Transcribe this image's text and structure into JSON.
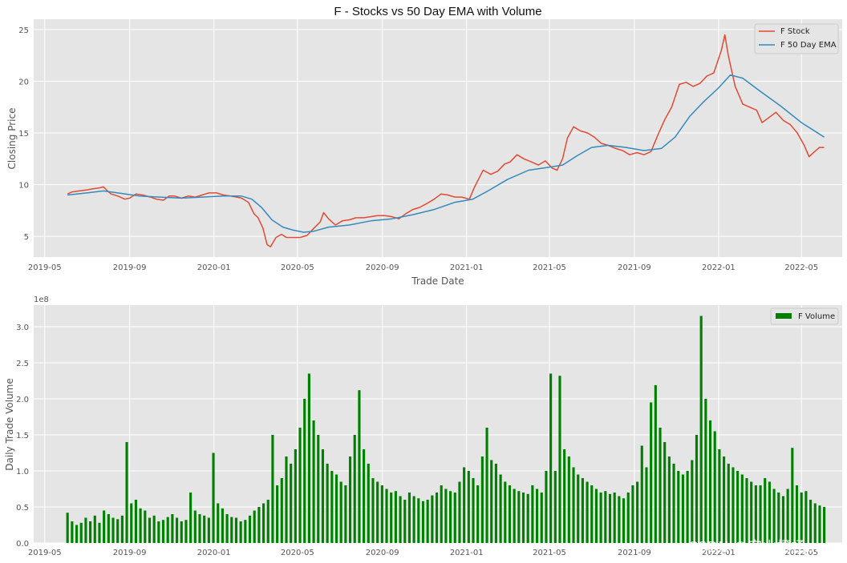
{
  "watermark": "CSDN @实山橙杨prss",
  "chart_data": [
    {
      "type": "line",
      "title": "F - Stocks vs 50 Day EMA with Volume",
      "xlabel": "Trade Date",
      "ylabel": "Closing Price",
      "x_ticks": [
        "2019-05",
        "2019-09",
        "2020-01",
        "2020-05",
        "2020-09",
        "2021-01",
        "2021-05",
        "2021-09",
        "2022-01",
        "2022-05"
      ],
      "y_ticks": [
        5,
        10,
        15,
        20,
        25
      ],
      "ylim": [
        3,
        26
      ],
      "grid": true,
      "legend": "top-right",
      "series": [
        {
          "name": "F Stock",
          "color": "#e24a33",
          "points": [
            [
              "2019-06-03",
              9.1
            ],
            [
              "2019-06-10",
              9.3
            ],
            [
              "2019-06-20",
              9.4
            ],
            [
              "2019-07-01",
              9.5
            ],
            [
              "2019-07-10",
              9.6
            ],
            [
              "2019-07-20",
              9.7
            ],
            [
              "2019-07-25",
              9.8
            ],
            [
              "2019-07-31",
              9.4
            ],
            [
              "2019-08-05",
              9.1
            ],
            [
              "2019-08-15",
              8.9
            ],
            [
              "2019-08-25",
              8.6
            ],
            [
              "2019-09-01",
              8.7
            ],
            [
              "2019-09-10",
              9.1
            ],
            [
              "2019-09-20",
              9.0
            ],
            [
              "2019-10-01",
              8.8
            ],
            [
              "2019-10-10",
              8.6
            ],
            [
              "2019-10-20",
              8.5
            ],
            [
              "2019-10-28",
              8.9
            ],
            [
              "2019-11-05",
              8.9
            ],
            [
              "2019-11-15",
              8.7
            ],
            [
              "2019-11-25",
              8.9
            ],
            [
              "2019-12-05",
              8.8
            ],
            [
              "2019-12-15",
              9.0
            ],
            [
              "2019-12-25",
              9.2
            ],
            [
              "2020-01-05",
              9.2
            ],
            [
              "2020-01-15",
              9.0
            ],
            [
              "2020-01-25",
              8.9
            ],
            [
              "2020-02-03",
              8.8
            ],
            [
              "2020-02-10",
              8.7
            ],
            [
              "2020-02-20",
              8.3
            ],
            [
              "2020-02-28",
              7.2
            ],
            [
              "2020-03-05",
              6.8
            ],
            [
              "2020-03-12",
              5.8
            ],
            [
              "2020-03-18",
              4.2
            ],
            [
              "2020-03-23",
              4.0
            ],
            [
              "2020-03-31",
              4.9
            ],
            [
              "2020-04-08",
              5.2
            ],
            [
              "2020-04-15",
              4.9
            ],
            [
              "2020-04-25",
              4.9
            ],
            [
              "2020-05-05",
              4.9
            ],
            [
              "2020-05-15",
              5.1
            ],
            [
              "2020-05-25",
              5.8
            ],
            [
              "2020-06-03",
              6.4
            ],
            [
              "2020-06-08",
              7.3
            ],
            [
              "2020-06-15",
              6.7
            ],
            [
              "2020-06-25",
              6.1
            ],
            [
              "2020-07-05",
              6.5
            ],
            [
              "2020-07-15",
              6.6
            ],
            [
              "2020-07-25",
              6.8
            ],
            [
              "2020-08-05",
              6.8
            ],
            [
              "2020-08-15",
              6.9
            ],
            [
              "2020-08-25",
              7.0
            ],
            [
              "2020-09-05",
              7.0
            ],
            [
              "2020-09-15",
              6.9
            ],
            [
              "2020-09-25",
              6.7
            ],
            [
              "2020-10-05",
              7.2
            ],
            [
              "2020-10-15",
              7.6
            ],
            [
              "2020-10-25",
              7.8
            ],
            [
              "2020-11-05",
              8.2
            ],
            [
              "2020-11-15",
              8.6
            ],
            [
              "2020-11-25",
              9.1
            ],
            [
              "2020-12-05",
              9.0
            ],
            [
              "2020-12-15",
              8.8
            ],
            [
              "2020-12-25",
              8.8
            ],
            [
              "2021-01-05",
              8.6
            ],
            [
              "2021-01-12",
              9.7
            ],
            [
              "2021-01-18",
              10.5
            ],
            [
              "2021-01-25",
              11.4
            ],
            [
              "2021-02-05",
              11.0
            ],
            [
              "2021-02-15",
              11.3
            ],
            [
              "2021-02-25",
              12.0
            ],
            [
              "2021-03-05",
              12.2
            ],
            [
              "2021-03-15",
              12.9
            ],
            [
              "2021-03-25",
              12.5
            ],
            [
              "2021-04-05",
              12.2
            ],
            [
              "2021-04-15",
              11.9
            ],
            [
              "2021-04-25",
              12.3
            ],
            [
              "2021-05-05",
              11.6
            ],
            [
              "2021-05-12",
              11.4
            ],
            [
              "2021-05-20",
              12.5
            ],
            [
              "2021-05-27",
              14.5
            ],
            [
              "2021-06-05",
              15.6
            ],
            [
              "2021-06-15",
              15.2
            ],
            [
              "2021-06-25",
              15.0
            ],
            [
              "2021-07-05",
              14.6
            ],
            [
              "2021-07-15",
              14.0
            ],
            [
              "2021-07-25",
              13.8
            ],
            [
              "2021-08-05",
              13.5
            ],
            [
              "2021-08-15",
              13.3
            ],
            [
              "2021-08-25",
              12.9
            ],
            [
              "2021-09-05",
              13.1
            ],
            [
              "2021-09-15",
              12.9
            ],
            [
              "2021-09-25",
              13.2
            ],
            [
              "2021-10-05",
              14.8
            ],
            [
              "2021-10-15",
              16.3
            ],
            [
              "2021-10-25",
              17.5
            ],
            [
              "2021-11-05",
              19.7
            ],
            [
              "2021-11-15",
              19.9
            ],
            [
              "2021-11-25",
              19.5
            ],
            [
              "2021-12-05",
              19.8
            ],
            [
              "2021-12-15",
              20.5
            ],
            [
              "2021-12-25",
              20.8
            ],
            [
              "2022-01-05",
              23.0
            ],
            [
              "2022-01-10",
              24.5
            ],
            [
              "2022-01-15",
              22.5
            ],
            [
              "2022-01-25",
              19.5
            ],
            [
              "2022-02-05",
              17.8
            ],
            [
              "2022-02-15",
              17.5
            ],
            [
              "2022-02-25",
              17.2
            ],
            [
              "2022-03-05",
              16.0
            ],
            [
              "2022-03-15",
              16.5
            ],
            [
              "2022-03-25",
              17.0
            ],
            [
              "2022-04-05",
              16.2
            ],
            [
              "2022-04-15",
              15.8
            ],
            [
              "2022-04-25",
              15.0
            ],
            [
              "2022-05-05",
              13.8
            ],
            [
              "2022-05-12",
              12.7
            ],
            [
              "2022-05-20",
              13.2
            ],
            [
              "2022-05-27",
              13.6
            ],
            [
              "2022-06-03",
              13.6
            ]
          ]
        },
        {
          "name": "F 50 Day EMA",
          "color": "#348abd",
          "points": [
            [
              "2019-06-03",
              9.0
            ],
            [
              "2019-07-01",
              9.2
            ],
            [
              "2019-07-25",
              9.4
            ],
            [
              "2019-08-15",
              9.2
            ],
            [
              "2019-09-15",
              8.9
            ],
            [
              "2019-10-15",
              8.8
            ],
            [
              "2019-11-15",
              8.7
            ],
            [
              "2019-12-15",
              8.8
            ],
            [
              "2020-01-15",
              8.9
            ],
            [
              "2020-02-10",
              8.9
            ],
            [
              "2020-02-25",
              8.6
            ],
            [
              "2020-03-10",
              7.8
            ],
            [
              "2020-03-25",
              6.6
            ],
            [
              "2020-04-10",
              5.9
            ],
            [
              "2020-04-25",
              5.6
            ],
            [
              "2020-05-10",
              5.4
            ],
            [
              "2020-05-25",
              5.5
            ],
            [
              "2020-06-15",
              5.9
            ],
            [
              "2020-07-15",
              6.1
            ],
            [
              "2020-08-15",
              6.5
            ],
            [
              "2020-09-15",
              6.7
            ],
            [
              "2020-10-15",
              7.1
            ],
            [
              "2020-11-15",
              7.6
            ],
            [
              "2020-12-15",
              8.3
            ],
            [
              "2021-01-10",
              8.6
            ],
            [
              "2021-02-01",
              9.4
            ],
            [
              "2021-03-01",
              10.5
            ],
            [
              "2021-04-01",
              11.4
            ],
            [
              "2021-05-01",
              11.7
            ],
            [
              "2021-05-20",
              11.9
            ],
            [
              "2021-06-10",
              12.8
            ],
            [
              "2021-07-01",
              13.6
            ],
            [
              "2021-07-25",
              13.8
            ],
            [
              "2021-08-20",
              13.6
            ],
            [
              "2021-09-15",
              13.3
            ],
            [
              "2021-10-10",
              13.5
            ],
            [
              "2021-10-30",
              14.6
            ],
            [
              "2021-11-20",
              16.6
            ],
            [
              "2021-12-10",
              18.0
            ],
            [
              "2021-12-31",
              19.3
            ],
            [
              "2022-01-18",
              20.6
            ],
            [
              "2022-02-05",
              20.3
            ],
            [
              "2022-03-01",
              19.1
            ],
            [
              "2022-04-01",
              17.6
            ],
            [
              "2022-05-01",
              16.0
            ],
            [
              "2022-06-03",
              14.6
            ]
          ]
        }
      ]
    },
    {
      "type": "bar",
      "xlabel": "",
      "ylabel": "Daily Trade Volume",
      "offset_label": "1e8",
      "x_ticks": [
        "2019-05",
        "2019-09",
        "2020-01",
        "2020-05",
        "2020-09",
        "2021-01",
        "2021-05",
        "2021-09",
        "2022-01",
        "2022-05"
      ],
      "y_ticks": [
        "0.0",
        "0.5",
        "1.0",
        "1.5",
        "2.0",
        "2.5",
        "3.0"
      ],
      "ylim": [
        0,
        3.3
      ],
      "grid": true,
      "legend": "top-right",
      "series": [
        {
          "name": "F Volume",
          "color": "#008000",
          "start_date": "2019-06-03",
          "end_date": "2022-06-03",
          "values_1e8": [
            0.42,
            0.3,
            0.25,
            0.28,
            0.35,
            0.3,
            0.38,
            0.28,
            0.45,
            0.4,
            0.35,
            0.33,
            0.38,
            1.4,
            0.55,
            0.6,
            0.48,
            0.45,
            0.35,
            0.38,
            0.3,
            0.32,
            0.36,
            0.4,
            0.35,
            0.3,
            0.32,
            0.7,
            0.45,
            0.4,
            0.38,
            0.35,
            1.25,
            0.55,
            0.48,
            0.4,
            0.36,
            0.35,
            0.3,
            0.32,
            0.38,
            0.45,
            0.5,
            0.55,
            0.6,
            1.5,
            0.8,
            0.9,
            1.2,
            1.1,
            1.3,
            1.6,
            2.0,
            2.35,
            1.7,
            1.5,
            1.3,
            1.1,
            1.0,
            0.95,
            0.85,
            0.8,
            1.2,
            1.5,
            2.12,
            1.3,
            1.1,
            0.9,
            0.85,
            0.8,
            0.75,
            0.7,
            0.72,
            0.65,
            0.6,
            0.7,
            0.65,
            0.62,
            0.58,
            0.6,
            0.66,
            0.7,
            0.8,
            0.75,
            0.72,
            0.7,
            0.85,
            1.05,
            1.0,
            0.9,
            0.8,
            1.2,
            1.6,
            1.15,
            1.1,
            0.95,
            0.85,
            0.8,
            0.75,
            0.72,
            0.7,
            0.68,
            0.8,
            0.75,
            0.7,
            1.0,
            2.35,
            1.0,
            2.32,
            1.3,
            1.2,
            1.05,
            0.95,
            0.9,
            0.85,
            0.8,
            0.75,
            0.7,
            0.72,
            0.68,
            0.7,
            0.65,
            0.62,
            0.7,
            0.8,
            0.85,
            1.35,
            1.05,
            1.95,
            2.19,
            1.6,
            1.4,
            1.2,
            1.1,
            1.0,
            0.95,
            1.0,
            1.15,
            1.5,
            3.15,
            2.0,
            1.7,
            1.55,
            1.3,
            1.2,
            1.1,
            1.05,
            1.0,
            0.95,
            0.9,
            0.85,
            0.8,
            0.8,
            0.9,
            0.85,
            0.75,
            0.7,
            0.65,
            0.75,
            1.32,
            0.8,
            0.7,
            0.72,
            0.6,
            0.55,
            0.52,
            0.5
          ]
        }
      ]
    }
  ]
}
